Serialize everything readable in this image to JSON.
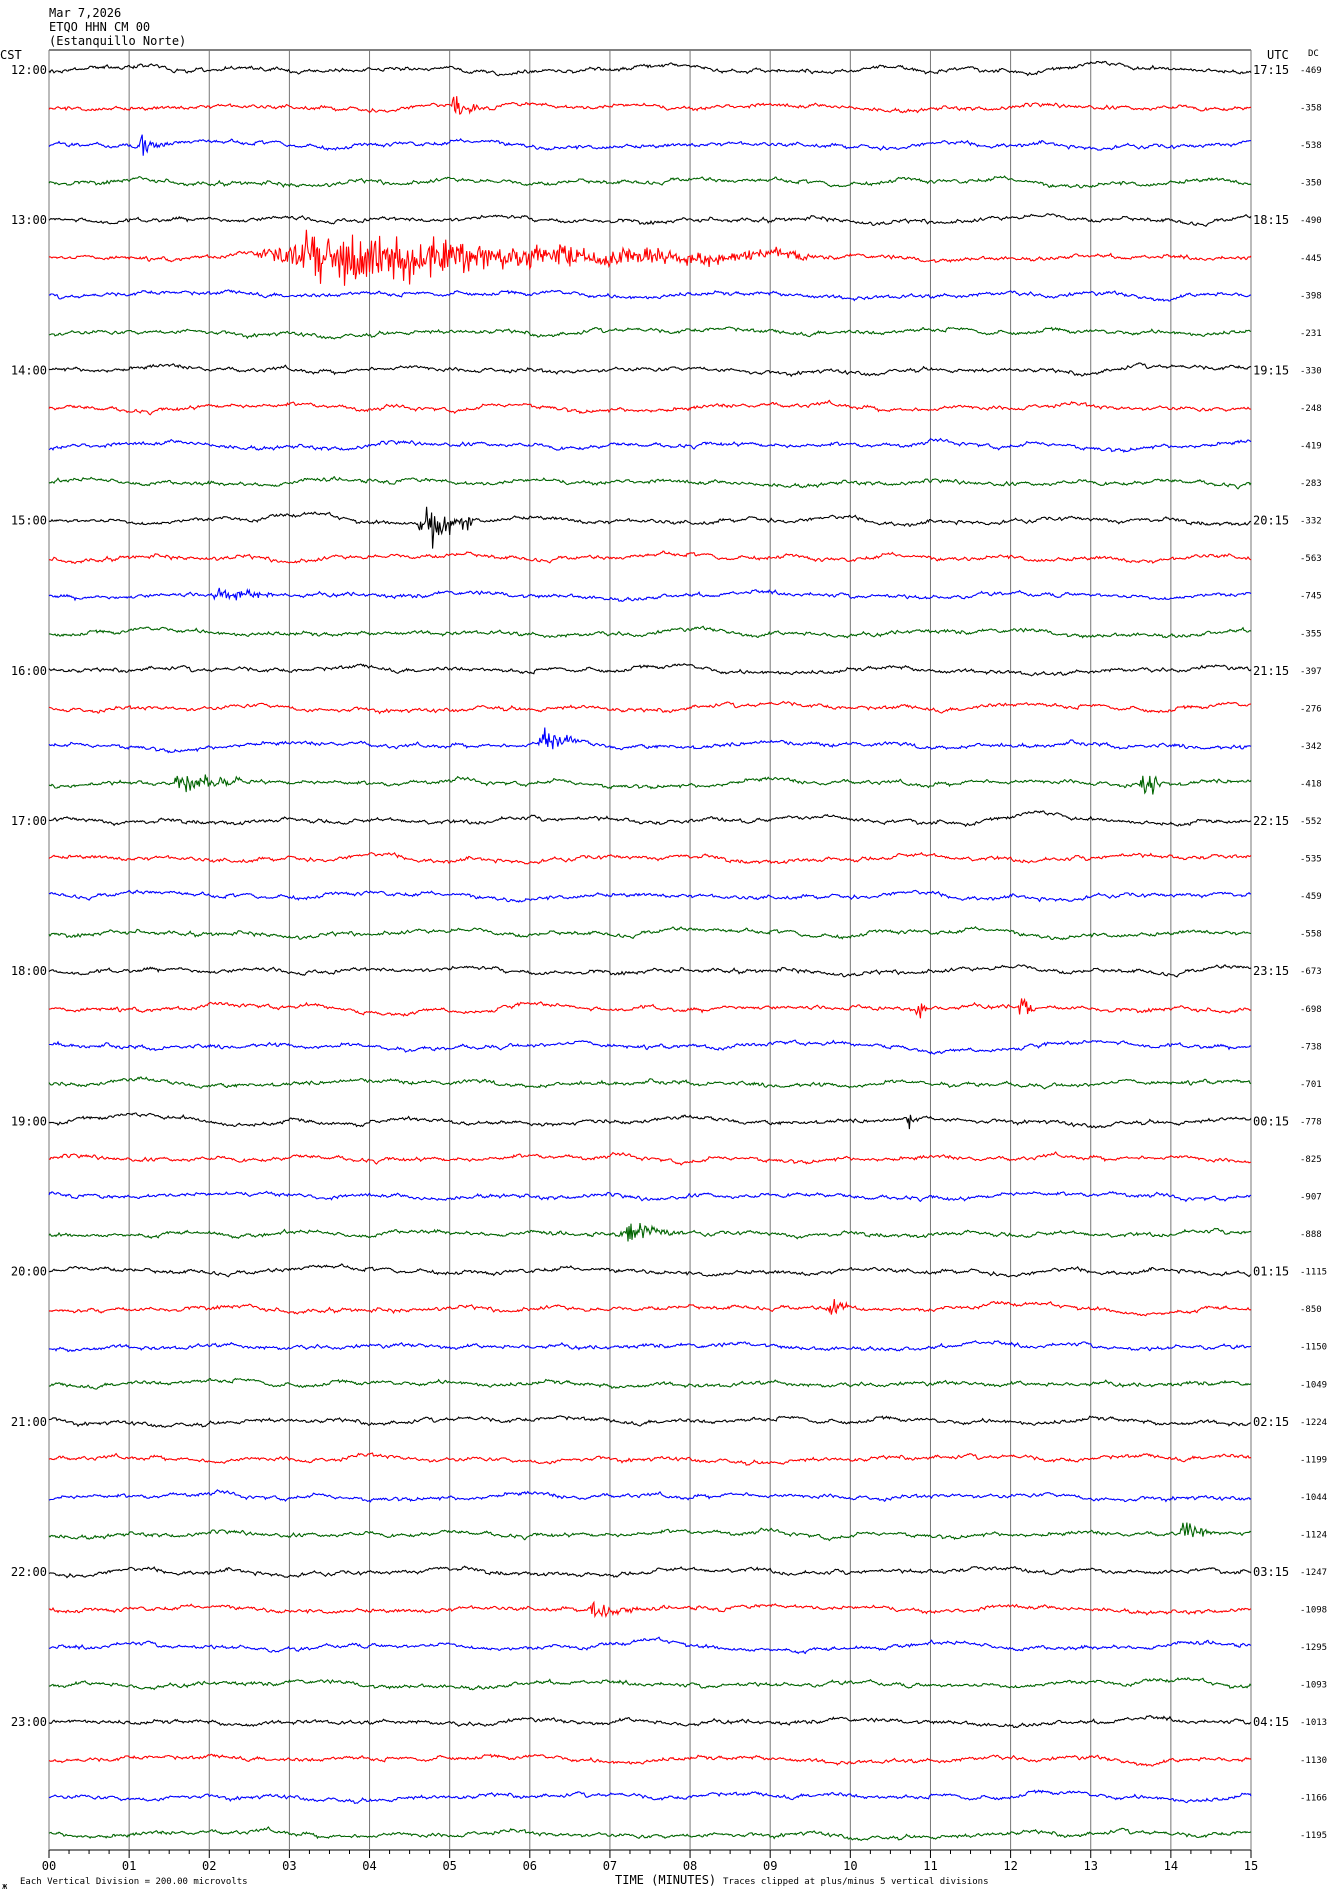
{
  "header": {
    "date": "Mar 7,2026",
    "station": "ETQO HHN CM 00",
    "site": "(Estanquillo Norte)"
  },
  "left_axis_label": "CST",
  "right_axis_label": "UTC",
  "dc_label": "DC",
  "footer": {
    "scale_note": "Each Vertical Division =  200.00 microvolts",
    "xlabel": "TIME (MINUTES)",
    "clip_note": "Traces clipped at plus/minus 5 vertical divisions",
    "corner_glyph": "ж"
  },
  "colors": [
    "#000000",
    "#ff0000",
    "#0000ff",
    "#006400"
  ],
  "chart_data": {
    "type": "line",
    "title": "",
    "xlabel": "TIME (MINUTES)",
    "ylabel": "",
    "xlim": [
      0,
      15
    ],
    "x_ticks": [
      "00",
      "01",
      "02",
      "03",
      "04",
      "05",
      "06",
      "07",
      "08",
      "09",
      "10",
      "11",
      "12",
      "13",
      "14",
      "15"
    ],
    "grid": true,
    "traces_per_hour": 4,
    "hour_labels_cst": [
      "12:00",
      "13:00",
      "14:00",
      "15:00",
      "16:00",
      "17:00",
      "18:00",
      "19:00",
      "20:00",
      "21:00",
      "22:00",
      "23:00"
    ],
    "hour_labels_utc": [
      "17:15",
      "18:15",
      "19:15",
      "20:15",
      "21:15",
      "22:15",
      "23:15",
      "00:15",
      "01:15",
      "02:15",
      "03:15",
      "04:15"
    ],
    "dc_offsets": [
      -469,
      -358,
      -538,
      -350,
      -490,
      -445,
      -398,
      -231,
      -330,
      -248,
      -419,
      -283,
      -332,
      -563,
      -745,
      -355,
      -397,
      -276,
      -342,
      -418,
      -552,
      -535,
      -459,
      -558,
      -673,
      -698,
      -738,
      -701,
      -778,
      -825,
      -907,
      -888,
      -1115,
      -850,
      -1150,
      -1049,
      -1224,
      -1199,
      -1044,
      -1124,
      -1247,
      -1098,
      -1295,
      -1093,
      -1013,
      -1130,
      -1166,
      -1195
    ],
    "events": [
      {
        "trace": 1,
        "start_min": 5.0,
        "end_min": 5.4,
        "amp": 10
      },
      {
        "trace": 2,
        "start_min": 1.1,
        "end_min": 1.5,
        "amp": 10
      },
      {
        "trace": 5,
        "start_min": 2.5,
        "end_min": 9.5,
        "amp": 24
      },
      {
        "trace": 12,
        "start_min": 4.6,
        "end_min": 5.3,
        "amp": 26
      },
      {
        "trace": 14,
        "start_min": 2.0,
        "end_min": 2.9,
        "amp": 8
      },
      {
        "trace": 18,
        "start_min": 6.1,
        "end_min": 6.6,
        "amp": 16
      },
      {
        "trace": 19,
        "start_min": 1.5,
        "end_min": 2.5,
        "amp": 10
      },
      {
        "trace": 19,
        "start_min": 13.6,
        "end_min": 14.0,
        "amp": 14
      },
      {
        "trace": 25,
        "start_min": 10.8,
        "end_min": 11.0,
        "amp": 14
      },
      {
        "trace": 25,
        "start_min": 12.1,
        "end_min": 12.3,
        "amp": 18
      },
      {
        "trace": 28,
        "start_min": 10.7,
        "end_min": 10.9,
        "amp": 10
      },
      {
        "trace": 31,
        "start_min": 7.1,
        "end_min": 7.9,
        "amp": 10
      },
      {
        "trace": 33,
        "start_min": 9.7,
        "end_min": 10.1,
        "amp": 10
      },
      {
        "trace": 39,
        "start_min": 14.1,
        "end_min": 14.5,
        "amp": 16
      },
      {
        "trace": 41,
        "start_min": 6.7,
        "end_min": 7.4,
        "amp": 9
      }
    ]
  }
}
